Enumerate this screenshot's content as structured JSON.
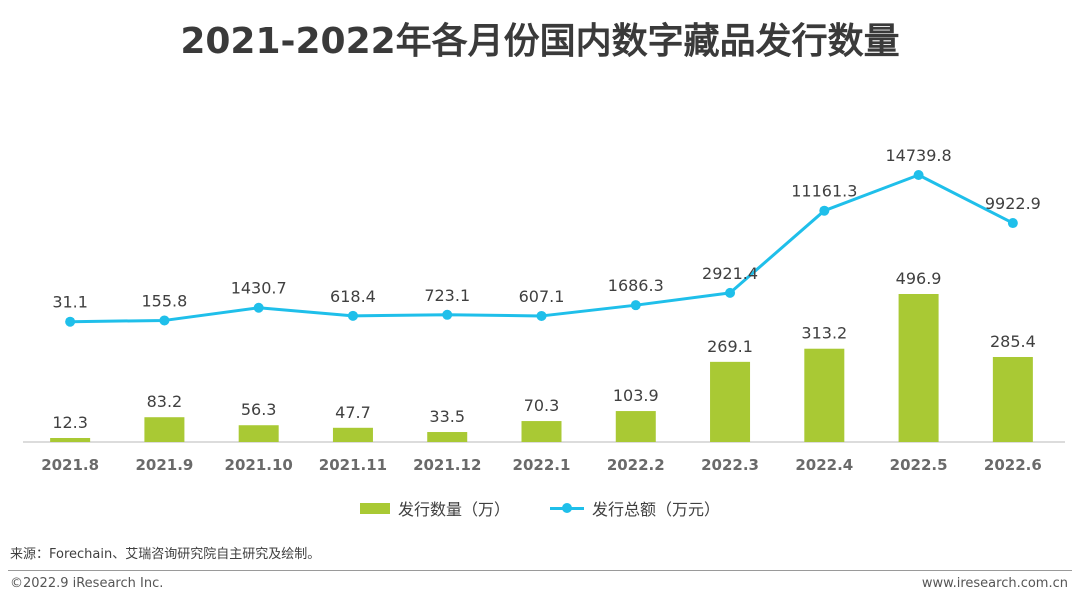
{
  "title": "2021-2022年各月份国内数字藏品发行数量",
  "chart_data": {
    "type": "bar+line",
    "categories": [
      "2021.8",
      "2021.9",
      "2021.10",
      "2021.11",
      "2021.12",
      "2022.1",
      "2022.2",
      "2022.3",
      "2022.4",
      "2022.5",
      "2022.6"
    ],
    "series": [
      {
        "name": "发行数量（万）",
        "type": "bar",
        "color": "#a9c934",
        "values": [
          12.3,
          83.2,
          56.3,
          47.7,
          33.5,
          70.3,
          103.9,
          269.1,
          313.2,
          496.9,
          285.4
        ]
      },
      {
        "name": "发行总额（万元）",
        "type": "line",
        "color": "#1fbfea",
        "values": [
          31.1,
          155.8,
          1430.7,
          618.4,
          723.1,
          607.1,
          1686.3,
          2921.4,
          11161.3,
          14739.8,
          9922.9
        ]
      }
    ],
    "value_labels_bar": [
      "12.3",
      "83.2",
      "56.3",
      "47.7",
      "33.5",
      "70.3",
      "103.9",
      "269.1",
      "313.2",
      "496.9",
      "285.4"
    ],
    "value_labels_line": [
      "31.1",
      "155.8",
      "1430.7",
      "618.4",
      "723.1",
      "607.1",
      "1686.3",
      "2921.4",
      "11161.3",
      "14739.8",
      "9922.9"
    ],
    "legend_position": "bottom-center"
  },
  "legend": {
    "bar_label": "发行数量（万）",
    "line_label": "发行总额（万元）"
  },
  "source": "来源：Forechain、艾瑞咨询研究院自主研究及绘制。",
  "footer": {
    "copyright": "©2022.9 iResearch Inc.",
    "url": "www.iresearch.com.cn"
  }
}
